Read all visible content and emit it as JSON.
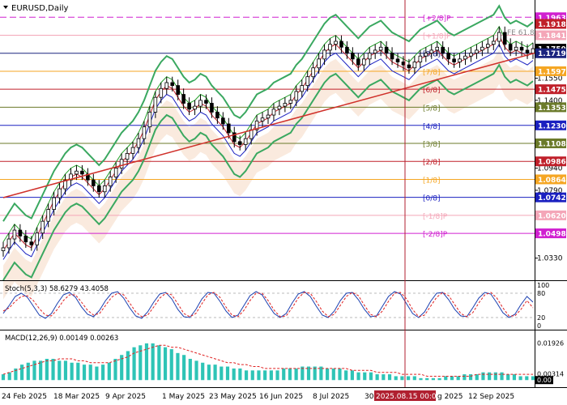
{
  "symbol": {
    "title": "EURUSD,Daily"
  },
  "chart_data": [
    {
      "type": "line",
      "panel": "price",
      "title": "EURUSD,Daily",
      "ylim": [
        1.018,
        1.208
      ],
      "y_ticks": [
        1.171,
        1.155,
        1.14,
        1.094,
        1.079,
        1.033
      ],
      "levels": [
        {
          "label": "[+2/8]P",
          "value": 1.1963,
          "color": "#d020d0",
          "style": "dash"
        },
        {
          "label": "[+1/8]P",
          "value": 1.1841,
          "color": "#f4a6b8",
          "style": "solid"
        },
        {
          "label": "[8/8]P",
          "value": 1.1719,
          "color": "#1a237e",
          "style": "solid"
        },
        {
          "label": "[7/8]",
          "value": 1.1597,
          "color": "#f5a623",
          "style": "solid"
        },
        {
          "label": "[6/8]",
          "value": 1.1475,
          "color": "#c0202a",
          "style": "solid"
        },
        {
          "label": "[5/8]",
          "value": 1.1353,
          "color": "#6b7a2a",
          "style": "solid"
        },
        {
          "label": "[4/8]",
          "value": 1.123,
          "color": "#1a20c0",
          "style": "solid"
        },
        {
          "label": "[3/8]",
          "value": 1.1108,
          "color": "#6b7a2a",
          "style": "solid"
        },
        {
          "label": "[2/8]",
          "value": 1.0986,
          "color": "#c0202a",
          "style": "solid"
        },
        {
          "label": "[1/8]",
          "value": 1.0864,
          "color": "#f5a623",
          "style": "solid"
        },
        {
          "label": "[0/8]",
          "value": 1.0742,
          "color": "#1a20c0",
          "style": "solid"
        },
        {
          "label": "[-1/8]P",
          "value": 1.062,
          "color": "#f4a6b8",
          "style": "solid"
        },
        {
          "label": "[-2/8]P",
          "value": 1.0498,
          "color": "#d020d0",
          "style": "solid"
        }
      ],
      "price_tags": [
        {
          "value": 1.1963,
          "text": "1.1963",
          "bg": "#d020d0"
        },
        {
          "value": 1.1918,
          "text": "1.1918",
          "bg": "#c0202a"
        },
        {
          "value": 1.1841,
          "text": "1.1841",
          "bg": "#f4a6b8"
        },
        {
          "value": 1.175,
          "text": "1.1750",
          "bg": "#000000"
        },
        {
          "value": 1.1719,
          "text": "1.1719",
          "bg": "#1a237e"
        },
        {
          "value": 1.1597,
          "text": "1.1597",
          "bg": "#f5a623"
        },
        {
          "value": 1.1475,
          "text": "1.1475",
          "bg": "#c0202a"
        },
        {
          "value": 1.1353,
          "text": "1.1353",
          "bg": "#6b7a2a"
        },
        {
          "value": 1.123,
          "text": "1.1230",
          "bg": "#1a20c0"
        },
        {
          "value": 1.1108,
          "text": "1.1108",
          "bg": "#6b7a2a"
        },
        {
          "value": 1.0986,
          "text": "1.0986",
          "bg": "#c0202a"
        },
        {
          "value": 1.0864,
          "text": "1.0864",
          "bg": "#f5a623"
        },
        {
          "value": 1.0742,
          "text": "1.0742",
          "bg": "#1a20c0"
        },
        {
          "value": 1.062,
          "text": "1.0620",
          "bg": "#f4a6b8"
        },
        {
          "value": 1.0498,
          "text": "1.0498",
          "bg": "#d020d0"
        }
      ],
      "fibo_label": {
        "text": "FE 61.8",
        "value": 1.186
      },
      "close_series": [
        1.04,
        1.046,
        1.052,
        1.048,
        1.044,
        1.042,
        1.05,
        1.058,
        1.066,
        1.074,
        1.08,
        1.086,
        1.09,
        1.092,
        1.09,
        1.086,
        1.082,
        1.078,
        1.082,
        1.088,
        1.094,
        1.1,
        1.104,
        1.108,
        1.114,
        1.122,
        1.132,
        1.142,
        1.148,
        1.152,
        1.15,
        1.144,
        1.138,
        1.134,
        1.136,
        1.14,
        1.138,
        1.132,
        1.128,
        1.124,
        1.118,
        1.112,
        1.11,
        1.114,
        1.12,
        1.126,
        1.128,
        1.13,
        1.134,
        1.136,
        1.138,
        1.14,
        1.146,
        1.15,
        1.156,
        1.162,
        1.168,
        1.174,
        1.178,
        1.18,
        1.176,
        1.172,
        1.168,
        1.164,
        1.168,
        1.172,
        1.174,
        1.176,
        1.172,
        1.168,
        1.166,
        1.164,
        1.162,
        1.166,
        1.17,
        1.172,
        1.174,
        1.176,
        1.172,
        1.168,
        1.166,
        1.168,
        1.17,
        1.172,
        1.174,
        1.176,
        1.178,
        1.18,
        1.186,
        1.178,
        1.174,
        1.176,
        1.174,
        1.172,
        1.175
      ],
      "trendline": {
        "from": 1.074,
        "to": 1.172,
        "color": "#d0302a"
      },
      "current_vline_label": "2025.08.15 00:00"
    },
    {
      "type": "line",
      "panel": "oscillator",
      "title": "Stoch(5,3,3) 58.6279 43.4058",
      "ylim": [
        0,
        100
      ],
      "y_ticks": [
        100,
        80,
        20,
        0
      ],
      "series": [
        {
          "values": [
            30,
            50,
            72,
            80,
            70,
            48,
            26,
            18,
            30,
            55,
            76,
            82,
            70,
            46,
            28,
            22,
            38,
            62,
            80,
            84,
            68,
            44,
            24,
            18,
            34,
            58,
            78,
            82,
            66,
            40,
            22,
            20,
            40,
            66,
            82,
            80,
            60,
            36,
            20,
            26,
            50,
            74,
            84,
            76,
            52,
            30,
            20,
            30,
            56,
            78,
            84,
            72,
            48,
            26,
            20,
            36,
            62,
            80,
            82,
            64,
            40,
            22,
            24,
            48,
            72,
            84,
            78,
            54,
            30,
            20,
            34,
            60,
            80,
            82,
            64,
            40,
            24,
            22,
            44,
            68,
            82,
            78,
            56,
            32,
            20,
            28,
            52,
            72,
            58
          ],
          "color": "#1a3fb0"
        },
        {
          "values": [
            36,
            44,
            60,
            72,
            74,
            62,
            42,
            26,
            24,
            40,
            62,
            76,
            76,
            58,
            38,
            26,
            30,
            50,
            70,
            80,
            76,
            56,
            34,
            22,
            26,
            46,
            68,
            80,
            76,
            54,
            30,
            22,
            30,
            54,
            76,
            82,
            70,
            46,
            26,
            22,
            38,
            62,
            80,
            80,
            62,
            38,
            22,
            24,
            44,
            68,
            82,
            80,
            60,
            36,
            22,
            28,
            50,
            72,
            82,
            74,
            50,
            28,
            22,
            36,
            60,
            80,
            82,
            66,
            40,
            22,
            26,
            48,
            70,
            82,
            74,
            52,
            30,
            22,
            32,
            56,
            76,
            82,
            68,
            44,
            24,
            24,
            40,
            62,
            44
          ],
          "color": "#e02020",
          "style": "dash"
        }
      ]
    },
    {
      "type": "bar",
      "panel": "macd",
      "title": "MACD(12,26,9) 0.00149 0.00263",
      "ylim": [
        -0.002,
        0.024
      ],
      "y_ticks": [
        0.01926,
        0.00314
      ],
      "y_tick_labels": [
        "0.01926",
        "0.00314"
      ],
      "bottom_tag": "0.00",
      "values": [
        0.003,
        0.004,
        0.006,
        0.008,
        0.009,
        0.01,
        0.01,
        0.011,
        0.011,
        0.01,
        0.01,
        0.009,
        0.009,
        0.008,
        0.008,
        0.007,
        0.008,
        0.009,
        0.011,
        0.013,
        0.015,
        0.017,
        0.018,
        0.019,
        0.019,
        0.018,
        0.017,
        0.016,
        0.014,
        0.013,
        0.011,
        0.01,
        0.009,
        0.008,
        0.008,
        0.007,
        0.007,
        0.006,
        0.006,
        0.005,
        0.005,
        0.005,
        0.005,
        0.005,
        0.005,
        0.006,
        0.006,
        0.006,
        0.007,
        0.007,
        0.007,
        0.007,
        0.006,
        0.006,
        0.006,
        0.005,
        0.005,
        0.004,
        0.004,
        0.004,
        0.003,
        0.003,
        0.003,
        0.002,
        0.002,
        0.002,
        0.002,
        0.001,
        0.001,
        0.001,
        0.001,
        0.002,
        0.002,
        0.002,
        0.003,
        0.003,
        0.003,
        0.004,
        0.004,
        0.004,
        0.004,
        0.003,
        0.003,
        0.002,
        0.002,
        0.002
      ],
      "signal": [
        0.003,
        0.004,
        0.005,
        0.006,
        0.007,
        0.008,
        0.009,
        0.01,
        0.01,
        0.011,
        0.011,
        0.011,
        0.01,
        0.01,
        0.009,
        0.009,
        0.009,
        0.009,
        0.01,
        0.011,
        0.012,
        0.014,
        0.015,
        0.016,
        0.017,
        0.018,
        0.018,
        0.017,
        0.017,
        0.016,
        0.015,
        0.014,
        0.013,
        0.012,
        0.011,
        0.01,
        0.009,
        0.009,
        0.008,
        0.008,
        0.007,
        0.007,
        0.006,
        0.006,
        0.006,
        0.006,
        0.006,
        0.006,
        0.006,
        0.006,
        0.006,
        0.006,
        0.006,
        0.006,
        0.006,
        0.006,
        0.005,
        0.005,
        0.005,
        0.005,
        0.004,
        0.004,
        0.004,
        0.004,
        0.003,
        0.003,
        0.003,
        0.003,
        0.002,
        0.002,
        0.002,
        0.002,
        0.002,
        0.002,
        0.002,
        0.002,
        0.003,
        0.003,
        0.003,
        0.003,
        0.003,
        0.003,
        0.003,
        0.003,
        0.003,
        0.003
      ],
      "bar_color": "#2ec4b6",
      "signal_color": "#e02020"
    }
  ],
  "x_axis": {
    "labels": [
      "24 Feb 2025",
      "18 Mar 2025",
      "9 Apr 2025",
      "1 May 2025",
      "23 May 2025",
      "16 Jun 2025",
      "8 Jul 2025",
      "30",
      "2025.08.15 00:00",
      "g 2025",
      "12 Sep 2025"
    ]
  }
}
